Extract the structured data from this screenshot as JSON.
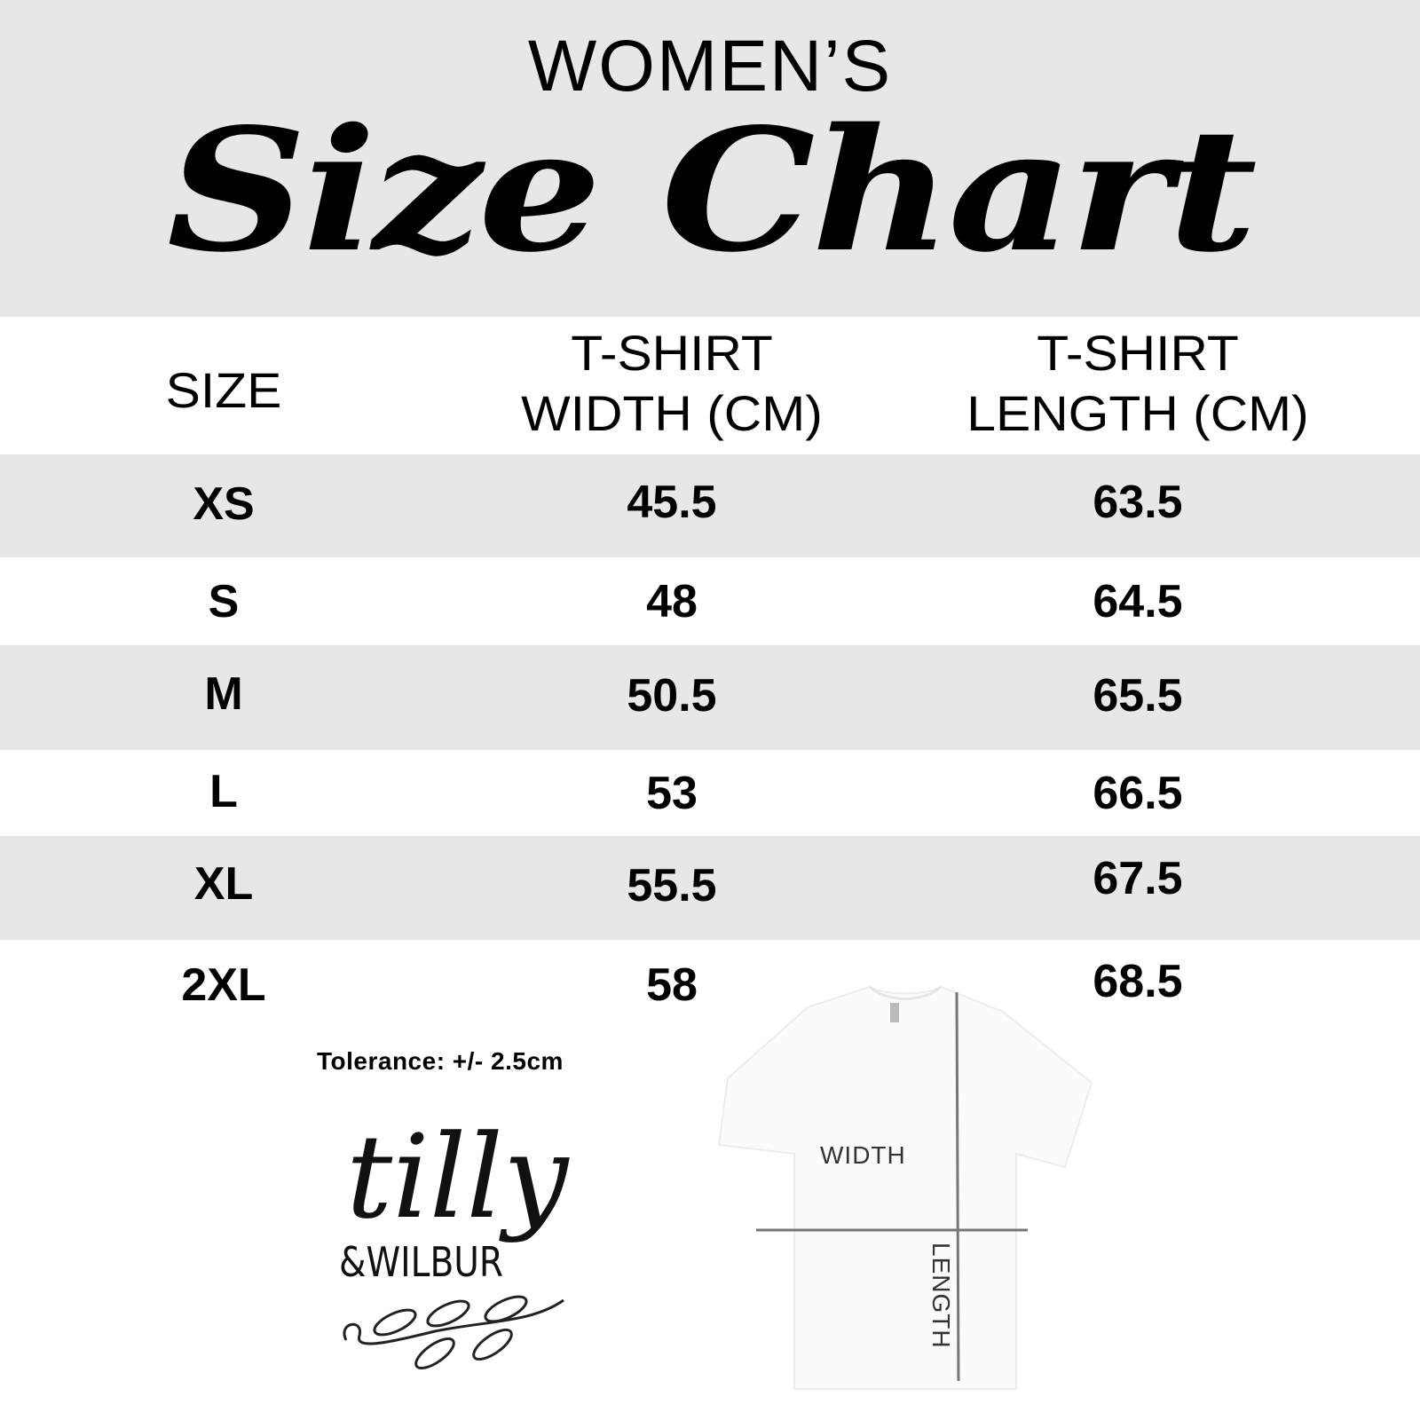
{
  "header": {
    "subtitle": "WOMEN’S",
    "title": "Size Chart"
  },
  "table": {
    "columns": [
      "SIZE",
      "T-SHIRT\nWIDTH (CM)",
      "T-SHIRT\nLENGTH (CM)"
    ],
    "column_lines": [
      [
        "SIZE"
      ],
      [
        "T-SHIRT",
        "WIDTH (CM)"
      ],
      [
        "T-SHIRT",
        "LENGTH (CM)"
      ]
    ],
    "rows": [
      {
        "size": "XS",
        "width": "45.5",
        "length": "63.5"
      },
      {
        "size": "S",
        "width": "48",
        "length": "64.5"
      },
      {
        "size": "M",
        "width": "50.5",
        "length": "65.5"
      },
      {
        "size": "L",
        "width": "53",
        "length": "66.5"
      },
      {
        "size": "XL",
        "width": "55.5",
        "length": "67.5"
      },
      {
        "size": "2XL",
        "width": "58",
        "length": "68.5"
      }
    ],
    "stripe_color": "#e6e7e8"
  },
  "tolerance": "Tolerance: +/- 2.5cm",
  "logo": {
    "line1": "tilly",
    "line2": "&WILBUR"
  },
  "diagram": {
    "width_label": "WIDTH",
    "length_label": "LENGTH",
    "line_color": "#777777"
  }
}
